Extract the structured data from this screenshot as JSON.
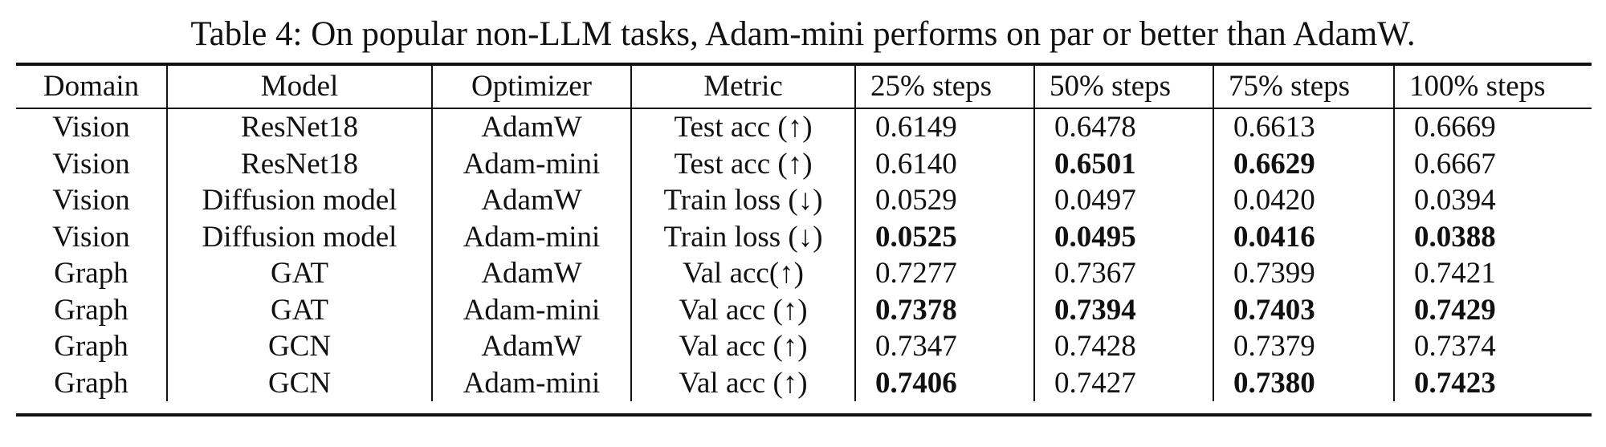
{
  "caption": "Table 4: On popular non-LLM tasks, Adam-mini performs on par or better than AdamW.",
  "columns": [
    "Domain",
    "Model",
    "Optimizer",
    "Metric",
    "25% steps",
    "50% steps",
    "75% steps",
    "100% steps"
  ],
  "rows": [
    {
      "domain": "Vision",
      "model": "ResNet18",
      "optimizer": "AdamW",
      "metric": "Test acc (↑)",
      "steps": [
        {
          "value": "0.6149",
          "bold": false
        },
        {
          "value": "0.6478",
          "bold": false
        },
        {
          "value": "0.6613",
          "bold": false
        },
        {
          "value": "0.6669",
          "bold": false
        }
      ]
    },
    {
      "domain": "Vision",
      "model": "ResNet18",
      "optimizer": "Adam-mini",
      "metric": "Test acc (↑)",
      "steps": [
        {
          "value": "0.6140",
          "bold": false
        },
        {
          "value": "0.6501",
          "bold": true
        },
        {
          "value": "0.6629",
          "bold": true
        },
        {
          "value": "0.6667",
          "bold": false
        }
      ]
    },
    {
      "domain": "Vision",
      "model": "Diffusion model",
      "optimizer": "AdamW",
      "metric": "Train loss (↓)",
      "steps": [
        {
          "value": "0.0529",
          "bold": false
        },
        {
          "value": "0.0497",
          "bold": false
        },
        {
          "value": "0.0420",
          "bold": false
        },
        {
          "value": "0.0394",
          "bold": false
        }
      ]
    },
    {
      "domain": "Vision",
      "model": "Diffusion model",
      "optimizer": "Adam-mini",
      "metric": "Train loss (↓)",
      "steps": [
        {
          "value": "0.0525",
          "bold": true
        },
        {
          "value": "0.0495",
          "bold": true
        },
        {
          "value": "0.0416",
          "bold": true
        },
        {
          "value": "0.0388",
          "bold": true
        }
      ]
    },
    {
      "domain": "Graph",
      "model": "GAT",
      "optimizer": "AdamW",
      "metric": "Val acc(↑)",
      "steps": [
        {
          "value": "0.7277",
          "bold": false
        },
        {
          "value": "0.7367",
          "bold": false
        },
        {
          "value": "0.7399",
          "bold": false
        },
        {
          "value": "0.7421",
          "bold": false
        }
      ]
    },
    {
      "domain": "Graph",
      "model": "GAT",
      "optimizer": "Adam-mini",
      "metric": "Val acc (↑)",
      "steps": [
        {
          "value": "0.7378",
          "bold": true
        },
        {
          "value": "0.7394",
          "bold": true
        },
        {
          "value": "0.7403",
          "bold": true
        },
        {
          "value": "0.7429",
          "bold": true
        }
      ]
    },
    {
      "domain": "Graph",
      "model": "GCN",
      "optimizer": "AdamW",
      "metric": "Val acc (↑)",
      "steps": [
        {
          "value": "0.7347",
          "bold": false
        },
        {
          "value": "0.7428",
          "bold": false
        },
        {
          "value": "0.7379",
          "bold": false
        },
        {
          "value": "0.7374",
          "bold": false
        }
      ]
    },
    {
      "domain": "Graph",
      "model": "GCN",
      "optimizer": "Adam-mini",
      "metric": "Val acc (↑)",
      "steps": [
        {
          "value": "0.7406",
          "bold": true
        },
        {
          "value": "0.7427",
          "bold": false
        },
        {
          "value": "0.7380",
          "bold": true
        },
        {
          "value": "0.7423",
          "bold": true
        }
      ]
    }
  ]
}
